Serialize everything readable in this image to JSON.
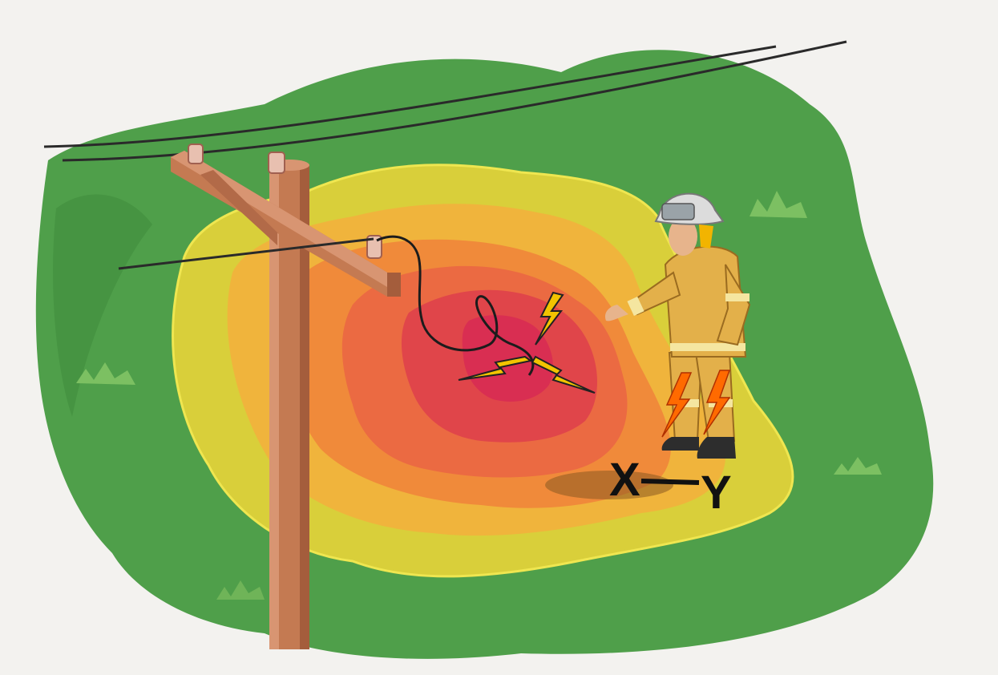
{
  "labels": {
    "point_x": "X",
    "point_y": "Y"
  },
  "colors": {
    "background": "#f3f2ef",
    "grass": "#4f9f4a",
    "grass_dark": "#3d8a3a",
    "zone_outer": "#d9cf3a",
    "zone_2": "#f0b43c",
    "zone_3": "#f08a3a",
    "zone_4": "#eb6a42",
    "zone_5": "#e0454a",
    "zone_center": "#d92e52",
    "pole": "#c47a52",
    "turnout_gear": "#e3b04a",
    "bolt": "#f2c400"
  },
  "icons": [
    "utility-pole-icon",
    "firefighter-icon",
    "lightning-bolt-icon",
    "downed-wire-icon"
  ]
}
